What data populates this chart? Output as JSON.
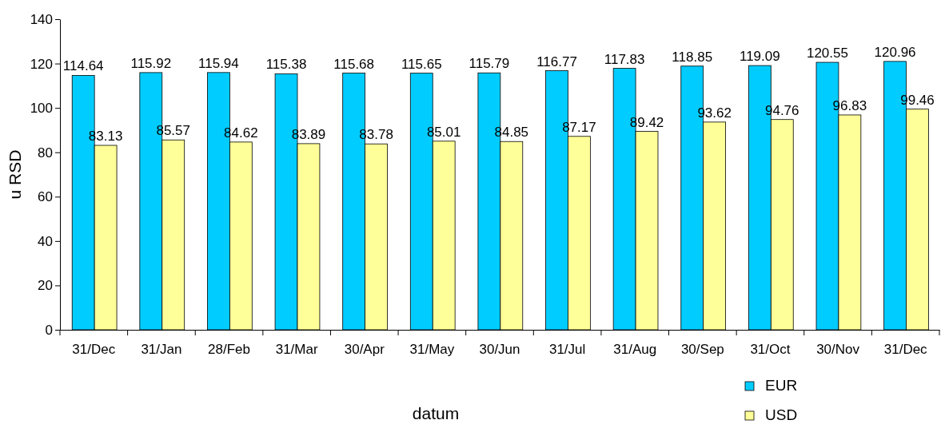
{
  "chart_data": {
    "type": "bar",
    "xlabel": "datum",
    "ylabel": "u RSD",
    "categories": [
      "31/Dec",
      "31/Jan",
      "28/Feb",
      "31/Mar",
      "30/Apr",
      "31/May",
      "30/Jun",
      "31/Jul",
      "31/Aug",
      "30/Sep",
      "31/Oct",
      "30/Nov",
      "31/Dec"
    ],
    "series": [
      {
        "name": "EUR",
        "color": "#00ccff",
        "values": [
          114.64,
          115.92,
          115.94,
          115.38,
          115.68,
          115.65,
          115.79,
          116.77,
          117.83,
          118.85,
          119.09,
          120.55,
          120.96
        ]
      },
      {
        "name": "USD",
        "color": "#ffff99",
        "values": [
          83.13,
          85.57,
          84.62,
          83.89,
          83.78,
          85.01,
          84.85,
          87.17,
          89.42,
          93.62,
          94.76,
          96.83,
          99.46
        ]
      }
    ],
    "ylim": [
      0,
      140
    ],
    "yticks": [
      0,
      20,
      40,
      60,
      80,
      100,
      120,
      140
    ],
    "grid": false,
    "data_labels": true,
    "legend": "bottom right"
  }
}
